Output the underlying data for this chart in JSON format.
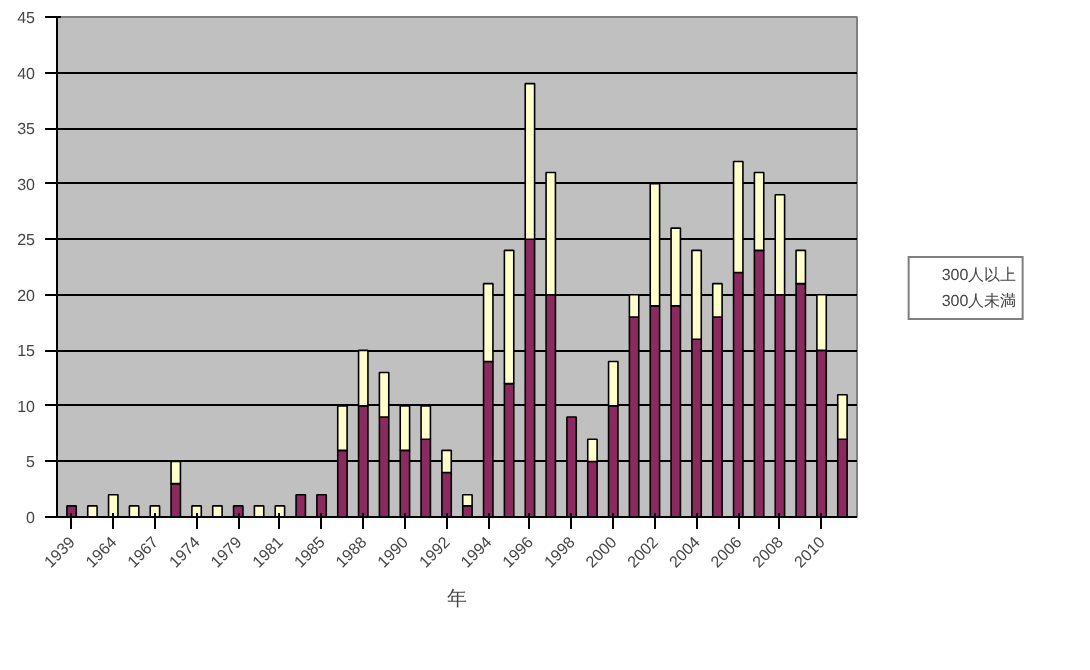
{
  "chart_data": {
    "type": "bar",
    "stacked": true,
    "xlabel": "年",
    "categories": [
      "1939",
      null,
      "1964",
      null,
      "1967",
      null,
      "1974",
      null,
      "1979",
      null,
      "1981",
      null,
      "1985",
      null,
      "1988",
      null,
      "1990",
      null,
      "1992",
      null,
      "1994",
      null,
      "1996",
      null,
      "1998",
      null,
      "2000",
      null,
      "2002",
      null,
      "2004",
      null,
      "2006",
      null,
      "2008",
      null,
      "2010",
      null
    ],
    "series": [
      {
        "name": "300人未満",
        "color": "#8b2a5e",
        "values": [
          1,
          0,
          0,
          0,
          0,
          3,
          0,
          0,
          1,
          0,
          0,
          2,
          2,
          6,
          10,
          9,
          6,
          7,
          4,
          1,
          14,
          12,
          25,
          20,
          9,
          5,
          10,
          18,
          19,
          19,
          16,
          18,
          22,
          24,
          20,
          21,
          15,
          7
        ]
      },
      {
        "name": "300人以上",
        "color": "#ffffcc",
        "values": [
          0,
          1,
          2,
          1,
          1,
          2,
          1,
          1,
          0,
          1,
          1,
          0,
          0,
          4,
          5,
          4,
          4,
          3,
          2,
          1,
          7,
          12,
          14,
          11,
          0,
          2,
          4,
          2,
          11,
          7,
          8,
          3,
          10,
          7,
          9,
          3,
          5,
          4
        ]
      }
    ],
    "ylim": [
      0,
      45
    ],
    "yticks": [
      0,
      5,
      10,
      15,
      20,
      25,
      30,
      35,
      40,
      45
    ],
    "grid": "y",
    "legend": "right"
  }
}
